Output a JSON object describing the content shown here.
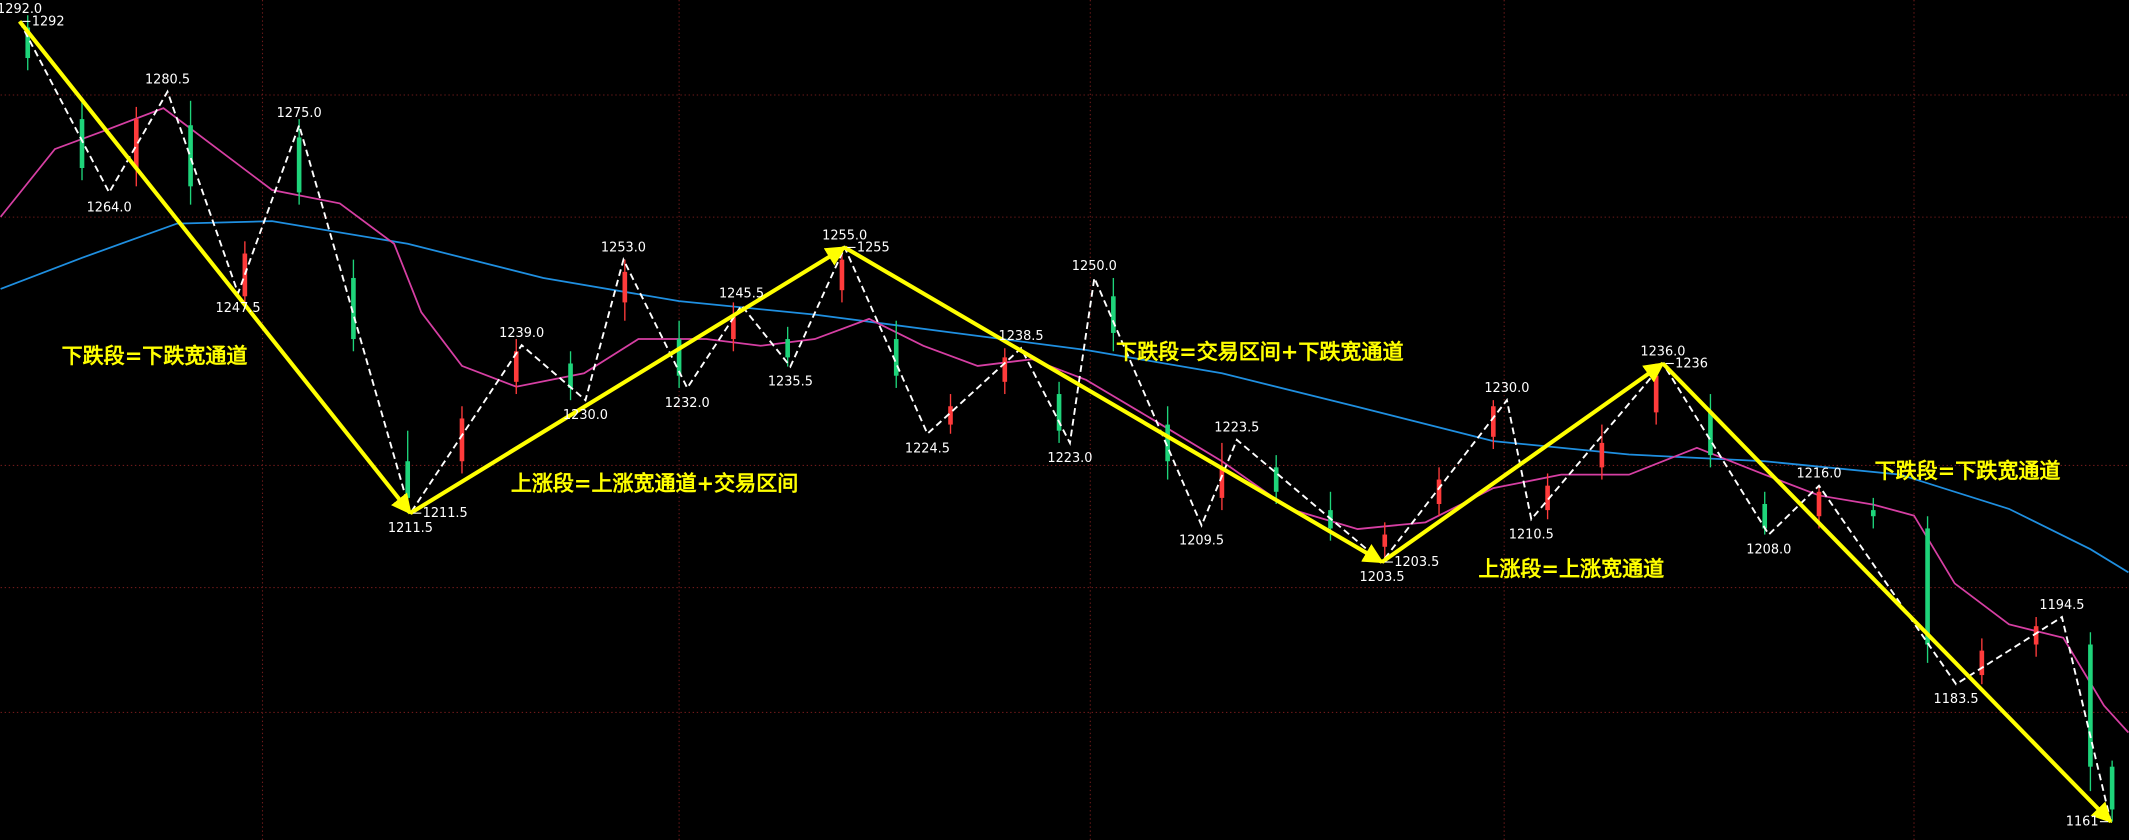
{
  "chart_data": {
    "type": "candlestick",
    "xlim": [
      0,
      392
    ],
    "ylim": [
      1158,
      1295.5
    ],
    "candles": {
      "up_color": "#ff3b3b",
      "down_color": "#1ed47a",
      "x": [
        5,
        15,
        25,
        35,
        45,
        55,
        65,
        75,
        85,
        95,
        105,
        115,
        125,
        135,
        145,
        155,
        165,
        175,
        185,
        195,
        205,
        215,
        225,
        235,
        245,
        255,
        265,
        275,
        285,
        295,
        305,
        315,
        325,
        335,
        345,
        355,
        365,
        375,
        385,
        389
      ],
      "open": [
        1291,
        1276,
        1268,
        1275,
        1247,
        1273,
        1250,
        1220,
        1220,
        1233,
        1236,
        1246,
        1240,
        1240,
        1240,
        1248,
        1240,
        1226,
        1233,
        1231,
        1247,
        1226,
        1214,
        1219,
        1212,
        1206,
        1213,
        1224,
        1212,
        1219,
        1228,
        1228,
        1213,
        1211,
        1212,
        1209,
        1185,
        1190,
        1190,
        1170
      ],
      "high": [
        1293,
        1279,
        1278,
        1279,
        1256,
        1276,
        1253,
        1225,
        1229,
        1240,
        1238,
        1253,
        1243,
        1246,
        1242,
        1255,
        1243,
        1231,
        1238.5,
        1233,
        1250,
        1229,
        1223,
        1221,
        1215,
        1210,
        1219,
        1230,
        1218,
        1226,
        1236,
        1231,
        1215,
        1216,
        1214,
        1211,
        1191,
        1194.5,
        1192,
        1171
      ],
      "low": [
        1284,
        1266,
        1265,
        1262,
        1246,
        1262,
        1238,
        1211.5,
        1218,
        1231,
        1230,
        1243,
        1232,
        1238,
        1235.5,
        1246,
        1232,
        1224.5,
        1231,
        1223,
        1238,
        1217,
        1212,
        1213,
        1207,
        1203.5,
        1211,
        1222,
        1210.5,
        1217,
        1226,
        1219,
        1208,
        1209,
        1209,
        1187,
        1183.5,
        1188,
        1166,
        1161
      ],
      "close": [
        1286,
        1268,
        1276,
        1265,
        1254,
        1264,
        1240,
        1214,
        1227,
        1238,
        1232,
        1251,
        1234,
        1244,
        1237,
        1253,
        1234,
        1229,
        1237,
        1225,
        1241,
        1220,
        1219,
        1215,
        1209,
        1208,
        1217,
        1229,
        1216,
        1223,
        1234,
        1221,
        1209,
        1215,
        1211,
        1190,
        1189,
        1193,
        1170,
        1163
      ]
    },
    "series": [
      {
        "color": "#1f8fe0",
        "x": [
          0,
          15,
          32.5,
          50,
          75,
          100,
          125,
          150,
          175,
          200,
          225,
          250,
          275,
          300,
          325,
          350,
          370,
          385,
          392
        ],
        "values": [
          1248.2,
          1253.3,
          1258.9,
          1259.3,
          1255.6,
          1250,
          1246.2,
          1244,
          1241.1,
          1238.2,
          1234.4,
          1228.9,
          1223.3,
          1221.1,
          1220,
          1217.8,
          1212.2,
          1205.6,
          1201.8
        ]
      },
      {
        "color": "#d63fa3",
        "x": [
          0,
          10,
          20,
          30,
          40,
          50,
          62.5,
          72.5,
          77.5,
          85,
          95,
          107.5,
          117.5,
          130,
          140,
          150,
          160,
          170,
          180,
          190,
          200,
          212.5,
          225,
          237.5,
          250,
          262.5,
          275,
          287.5,
          300,
          312.5,
          325,
          335,
          345,
          352.5,
          360,
          370,
          380,
          387.5,
          392
        ],
        "values": [
          1260,
          1271.1,
          1274.4,
          1277.8,
          1271.1,
          1264.4,
          1262.2,
          1255.6,
          1244.4,
          1235.6,
          1232.2,
          1234.4,
          1240,
          1240,
          1238.9,
          1240,
          1243.3,
          1238.9,
          1235.6,
          1236.7,
          1233.3,
          1226.7,
          1220,
          1212.2,
          1208.9,
          1210,
          1215.6,
          1217.8,
          1217.8,
          1222.2,
          1217.8,
          1214.4,
          1212.9,
          1211.1,
          1200,
          1193.3,
          1191.1,
          1180,
          1175.6
        ]
      }
    ],
    "pivots": {
      "color": "#ffffff",
      "x": [
        3.5,
        20,
        30.75,
        43.75,
        55,
        75.5,
        96,
        107.75,
        114.75,
        126.5,
        136.5,
        145.5,
        155.5,
        170.75,
        188,
        197,
        201.5,
        221.25,
        227.75,
        254.5,
        277.5,
        282,
        306.25,
        325.75,
        335,
        360.25,
        379.75,
        388.75
      ],
      "values": [
        1292,
        1264,
        1280.5,
        1247.5,
        1275,
        1211.5,
        1239,
        1230,
        1253,
        1232,
        1245.5,
        1235.5,
        1255,
        1224.5,
        1238.5,
        1223,
        1250,
        1209.5,
        1223.5,
        1203.5,
        1230,
        1210.5,
        1236,
        1208,
        1216,
        1183.5,
        1194.5,
        1161
      ],
      "value_labels": [
        "1292.0",
        "1264.0",
        "1280.5",
        "1247.5",
        "1275.0",
        "1211.5",
        "1239.0",
        "1230.0",
        "1253.0",
        "1232.0",
        "1245.5",
        "1235.5",
        "1255.0",
        "1224.5",
        "1238.5",
        "1223.0",
        "1250.0",
        "1209.5",
        "1223.5",
        "1203.5",
        "1230.0",
        "1210.5",
        "1236.0",
        "1208.0",
        "1216.0",
        "1183.5",
        "1194.5",
        null
      ]
    },
    "trend_color": "#ffff00",
    "tags": {
      "x": [
        3.5,
        75.5,
        155.5,
        254.5,
        306.25,
        388.75
      ],
      "values": [
        1292,
        1211.5,
        1255,
        1203.5,
        1236,
        1161
      ]
    },
    "annotations": [
      "下跌段=下跌宽通道",
      "上涨段=上涨宽通道+交易区间",
      "下跌段=交易区间+下跌宽通道",
      "上涨段=上涨宽通道",
      "下跌段=下跌宽通道"
    ]
  }
}
